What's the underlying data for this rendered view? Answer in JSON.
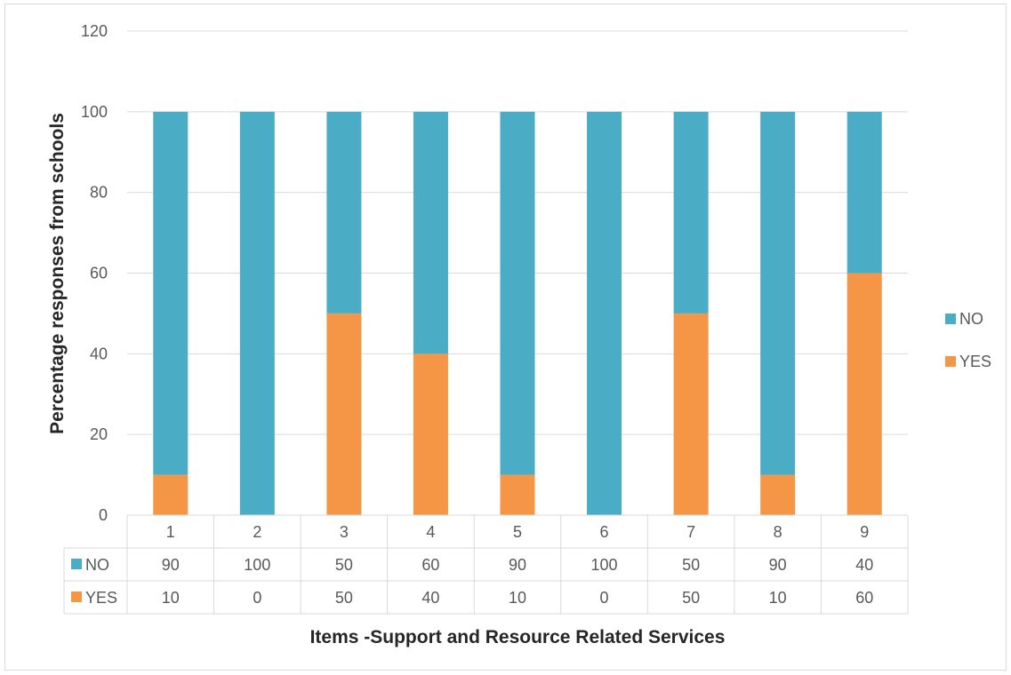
{
  "chart_data": {
    "type": "bar",
    "stacked": true,
    "categories": [
      "1",
      "2",
      "3",
      "4",
      "5",
      "6",
      "7",
      "8",
      "9"
    ],
    "series": [
      {
        "name": "YES",
        "color": "#F59646",
        "values": [
          10,
          0,
          50,
          40,
          10,
          0,
          50,
          10,
          60
        ]
      },
      {
        "name": "NO",
        "color": "#4BACC6",
        "values": [
          90,
          100,
          50,
          60,
          90,
          100,
          50,
          90,
          40
        ]
      }
    ],
    "legend_order": [
      "NO",
      "YES"
    ],
    "xlabel": "Items -Support and Resource Related Services",
    "ylabel": "Percentage responses from schools",
    "ylim": [
      0,
      120
    ],
    "yticks": [
      0,
      20,
      40,
      60,
      80,
      100,
      120
    ],
    "grid": true,
    "legend_position": "right",
    "data_table": true,
    "table_rows": [
      "NO",
      "YES"
    ]
  }
}
